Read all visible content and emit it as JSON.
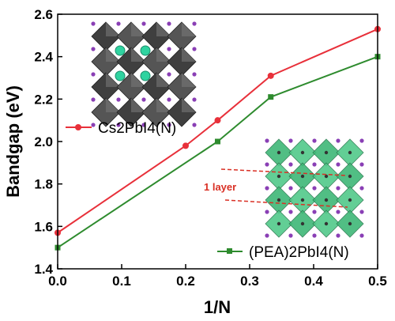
{
  "chart_data": {
    "type": "line",
    "xlabel": "1/N",
    "ylabel": "Bandgap (eV)",
    "xlim": [
      0.0,
      0.5
    ],
    "ylim": [
      1.4,
      2.6
    ],
    "xticks": [
      "0.0",
      "0.1",
      "0.2",
      "0.3",
      "0.4",
      "0.5"
    ],
    "yticks": [
      "1.4",
      "1.6",
      "1.8",
      "2.0",
      "2.2",
      "2.4",
      "2.6"
    ],
    "grid": false,
    "series": [
      {
        "name": "Cs2PbI4(N)",
        "color": "#e8303a",
        "marker": "circle",
        "x": [
          0.0,
          0.2,
          0.25,
          0.333,
          0.5
        ],
        "y": [
          1.57,
          1.98,
          2.1,
          2.31,
          2.53
        ]
      },
      {
        "name": "(PEA)2PbI4(N)",
        "color": "#2e8b2e",
        "marker": "square",
        "x": [
          0.0,
          0.25,
          0.333,
          0.5
        ],
        "y": [
          1.5,
          2.0,
          2.21,
          2.4
        ]
      }
    ],
    "legend": {
      "series1_label": "Cs2PbI4(N)",
      "series2_label": "(PEA)2PbI4(N)"
    },
    "annotations": {
      "layer_label": "1 layer"
    },
    "insets": [
      "gray-perovskite-structure-icon",
      "green-layered-perovskite-structure-icon"
    ]
  }
}
